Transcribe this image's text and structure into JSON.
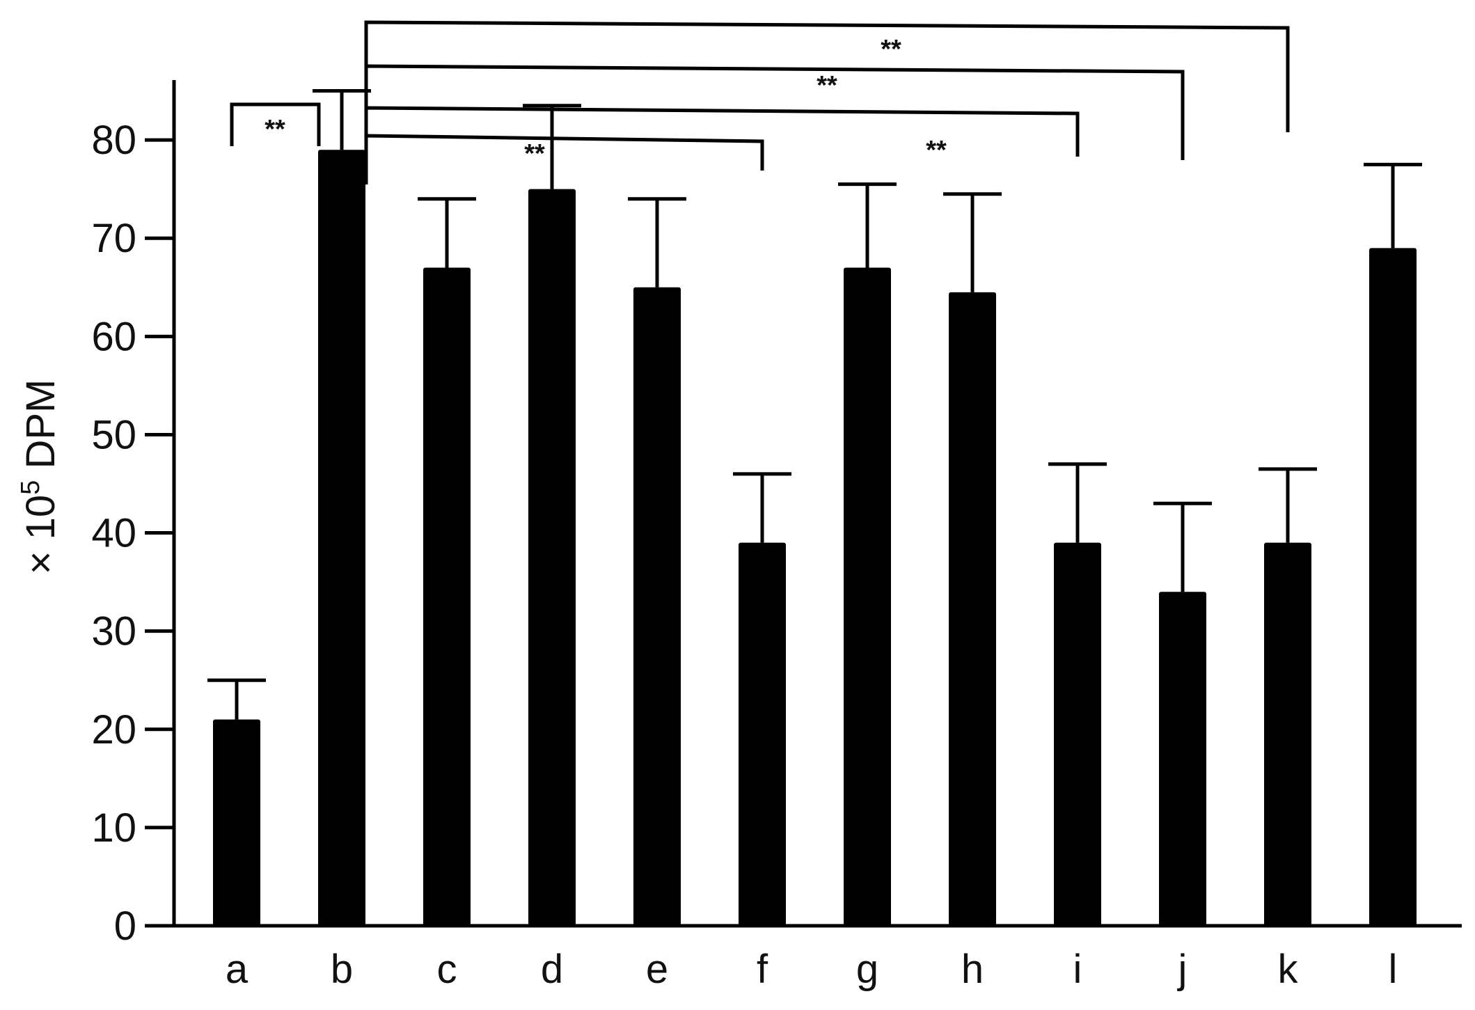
{
  "chart_data": {
    "type": "bar",
    "title": "",
    "xlabel": "",
    "ylabel": {
      "prefix": "× 10",
      "exponent": "5",
      "suffix": " DPM"
    },
    "ylim": [
      0,
      90
    ],
    "yticks": [
      0,
      10,
      20,
      30,
      40,
      50,
      60,
      70,
      80
    ],
    "categories": [
      "a",
      "b",
      "c",
      "d",
      "e",
      "f",
      "g",
      "h",
      "i",
      "j",
      "k",
      "l"
    ],
    "values": [
      21,
      79,
      67,
      75,
      65,
      39,
      67,
      64.5,
      39,
      34,
      39,
      69
    ],
    "error_upper": [
      25,
      85,
      74,
      83.5,
      74,
      46,
      75.5,
      74.5,
      47,
      43,
      46.5,
      77.5
    ],
    "bar_color": "#000000",
    "grid": false,
    "legend": "none",
    "significance": [
      {
        "from": "a",
        "to": "b",
        "label": "**"
      },
      {
        "from": "b",
        "to": "f",
        "label": "**"
      },
      {
        "from": "b",
        "to": "i",
        "label": "**"
      },
      {
        "from": "b",
        "to": "j",
        "label": "**"
      },
      {
        "from": "b",
        "to": "k",
        "label": "**"
      }
    ]
  }
}
